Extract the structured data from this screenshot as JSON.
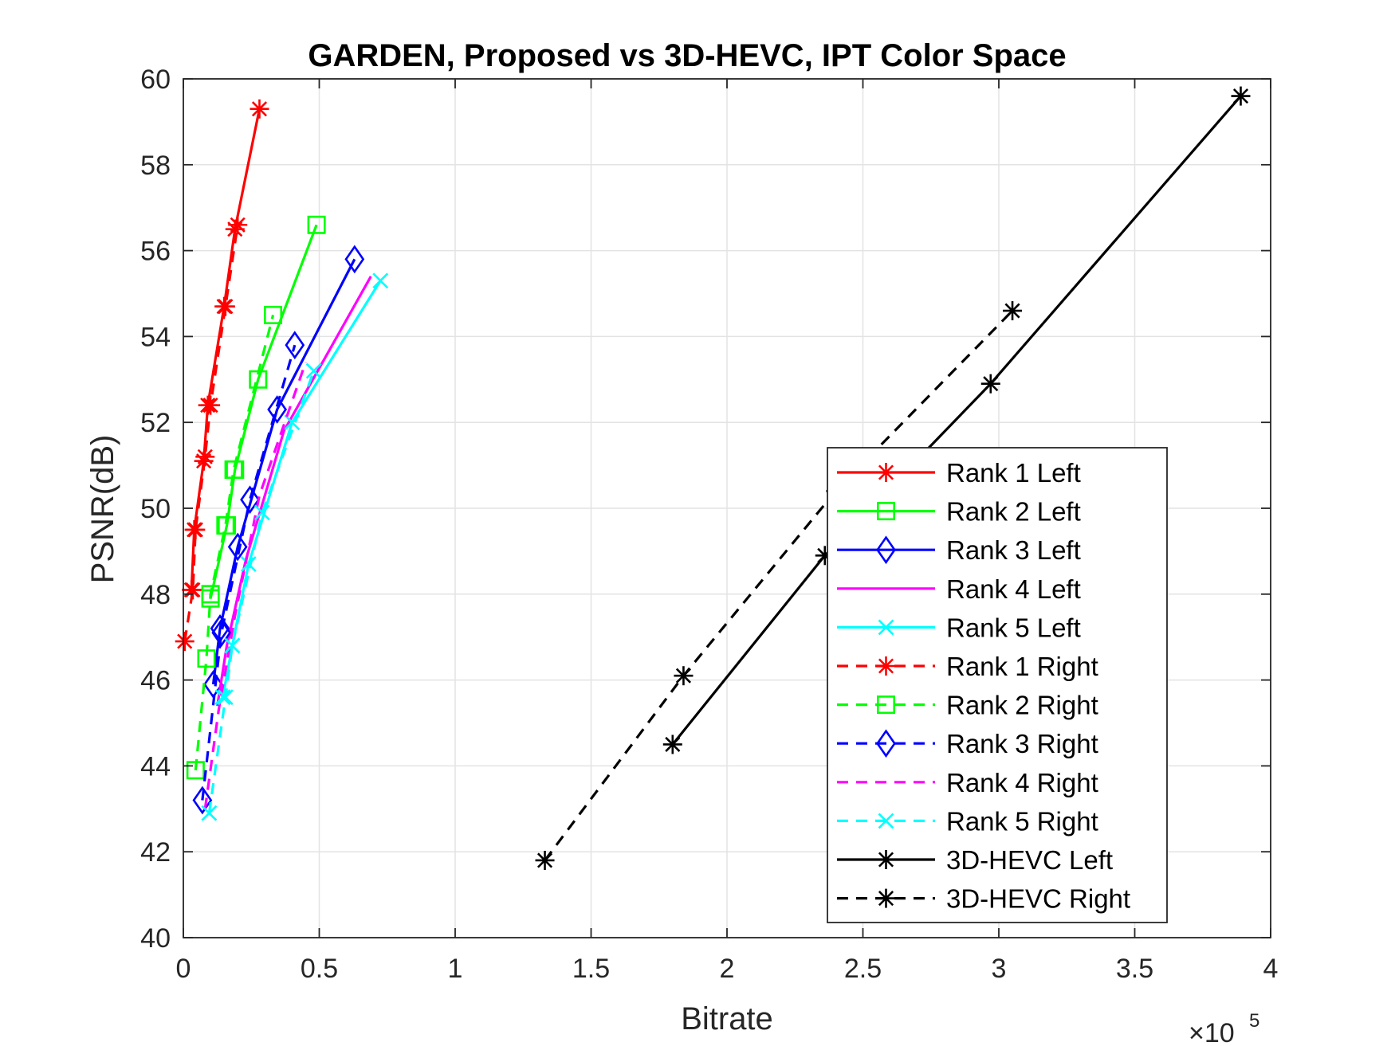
{
  "chart_data": {
    "type": "line",
    "title": "GARDEN, Proposed vs 3D-HEVC, IPT Color Space",
    "xlabel": "Bitrate",
    "ylabel": "PSNR(dB)",
    "x_exponent_label": "×10",
    "x_exponent_power": "5",
    "x_scale": 100000,
    "xlim": [
      0,
      400000
    ],
    "ylim": [
      40,
      60
    ],
    "grid": true,
    "legend_position": "bottom-right",
    "x_ticks": [
      {
        "value": 0,
        "label": "0"
      },
      {
        "value": 50000,
        "label": "0.5"
      },
      {
        "value": 100000,
        "label": "1"
      },
      {
        "value": 150000,
        "label": "1.5"
      },
      {
        "value": 200000,
        "label": "2"
      },
      {
        "value": 250000,
        "label": "2.5"
      },
      {
        "value": 300000,
        "label": "3"
      },
      {
        "value": 350000,
        "label": "3.5"
      },
      {
        "value": 400000,
        "label": "4"
      }
    ],
    "y_ticks": [
      {
        "value": 40,
        "label": "40"
      },
      {
        "value": 42,
        "label": "42"
      },
      {
        "value": 44,
        "label": "44"
      },
      {
        "value": 46,
        "label": "46"
      },
      {
        "value": 48,
        "label": "48"
      },
      {
        "value": 50,
        "label": "50"
      },
      {
        "value": 52,
        "label": "52"
      },
      {
        "value": 54,
        "label": "54"
      },
      {
        "value": 56,
        "label": "56"
      },
      {
        "value": 58,
        "label": "58"
      },
      {
        "value": 60,
        "label": "60"
      }
    ],
    "series": [
      {
        "name": "Rank 1 Left",
        "color": "#ff0000",
        "dash": "solid",
        "marker": "asterisk",
        "points": [
          [
            3000,
            48.1
          ],
          [
            4000,
            49.5
          ],
          [
            7500,
            51.1
          ],
          [
            9000,
            52.4
          ],
          [
            15000,
            54.7
          ],
          [
            19000,
            56.5
          ],
          [
            28000,
            59.3
          ]
        ]
      },
      {
        "name": "Rank 2 Left",
        "color": "#00ff00",
        "dash": "solid",
        "marker": "square",
        "points": [
          [
            10000,
            47.9
          ],
          [
            16000,
            49.6
          ],
          [
            19000,
            50.9
          ],
          [
            27500,
            53.0
          ],
          [
            49000,
            56.6
          ]
        ]
      },
      {
        "name": "Rank 3 Left",
        "color": "#0000ff",
        "dash": "solid",
        "marker": "diamond",
        "points": [
          [
            11000,
            45.9
          ],
          [
            13500,
            47.2
          ],
          [
            20000,
            49.1
          ],
          [
            34500,
            52.3
          ],
          [
            63000,
            55.8
          ]
        ]
      },
      {
        "name": "Rank 4 Left",
        "color": "#ff00ff",
        "dash": "solid",
        "marker": "none",
        "points": [
          [
            12500,
            45.4
          ],
          [
            16000,
            46.8
          ],
          [
            23000,
            48.8
          ],
          [
            37000,
            51.8
          ],
          [
            69000,
            55.4
          ]
        ]
      },
      {
        "name": "Rank 5 Left",
        "color": "#00ffff",
        "dash": "solid",
        "marker": "x",
        "points": [
          [
            14500,
            45.6
          ],
          [
            18000,
            46.8
          ],
          [
            24000,
            48.7
          ],
          [
            40000,
            52.0
          ],
          [
            72500,
            55.3
          ]
        ]
      },
      {
        "name": "Rank 1 Right",
        "color": "#ff0000",
        "dash": "dashed",
        "marker": "asterisk",
        "points": [
          [
            500,
            46.9
          ],
          [
            3500,
            48.1
          ],
          [
            4500,
            49.5
          ],
          [
            8000,
            51.2
          ],
          [
            10000,
            52.4
          ],
          [
            15500,
            54.7
          ],
          [
            20000,
            56.6
          ]
        ]
      },
      {
        "name": "Rank 2 Right",
        "color": "#00ff00",
        "dash": "dashed",
        "marker": "square",
        "points": [
          [
            4500,
            43.9
          ],
          [
            8500,
            46.5
          ],
          [
            10000,
            48.0
          ],
          [
            15500,
            49.6
          ],
          [
            18500,
            50.9
          ],
          [
            33000,
            54.5
          ]
        ]
      },
      {
        "name": "Rank 3 Right",
        "color": "#0000ff",
        "dash": "dashed",
        "marker": "diamond",
        "points": [
          [
            7000,
            43.2
          ],
          [
            14000,
            47.1
          ],
          [
            24500,
            50.2
          ],
          [
            41000,
            53.8
          ]
        ]
      },
      {
        "name": "Rank 4 Right",
        "color": "#ff00ff",
        "dash": "dashed",
        "marker": "none",
        "points": [
          [
            8000,
            43.0
          ],
          [
            13000,
            45.3
          ],
          [
            19000,
            47.5
          ],
          [
            28000,
            50.3
          ],
          [
            45000,
            53.4
          ]
        ]
      },
      {
        "name": "Rank 5 Right",
        "color": "#00ffff",
        "dash": "dashed",
        "marker": "x",
        "points": [
          [
            9500,
            42.9
          ],
          [
            15500,
            45.6
          ],
          [
            18000,
            46.8
          ],
          [
            29000,
            49.9
          ],
          [
            48000,
            53.2
          ]
        ]
      },
      {
        "name": "3D-HEVC Left",
        "color": "#000000",
        "dash": "solid",
        "marker": "asterisk",
        "points": [
          [
            180000,
            44.5
          ],
          [
            236000,
            48.9
          ],
          [
            297000,
            52.9
          ],
          [
            389000,
            59.6
          ]
        ]
      },
      {
        "name": "3D-HEVC Right",
        "color": "#000000",
        "dash": "dashed",
        "marker": "asterisk",
        "points": [
          [
            133000,
            41.8
          ],
          [
            184000,
            46.1
          ],
          [
            240000,
            50.4
          ],
          [
            305000,
            54.6
          ]
        ]
      }
    ]
  }
}
